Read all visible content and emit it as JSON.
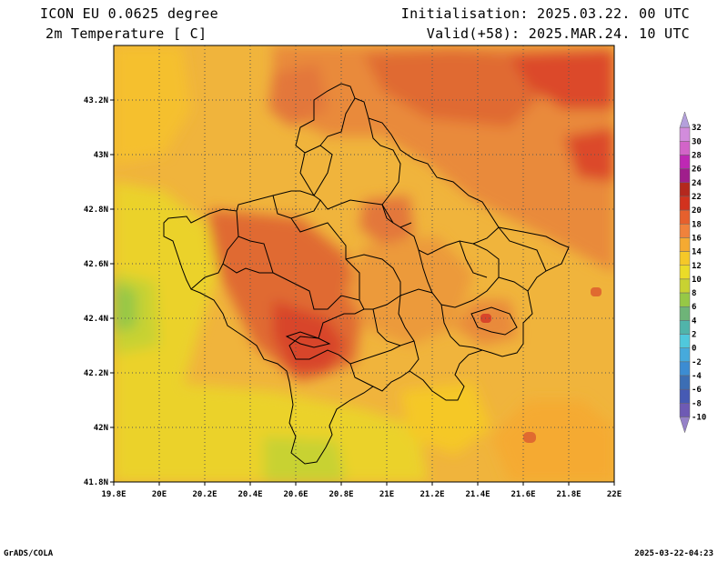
{
  "header": {
    "model": "ICON EU 0.0625 degree",
    "variable": "2m Temperature [ C]",
    "init": "Initialisation: 2025.03.22. 00 UTC",
    "valid": "Valid(+58): 2025.MAR.24. 10 UTC"
  },
  "footer": {
    "left": "GrADS/COLA",
    "right": "2025-03-22-04:23"
  },
  "map": {
    "lon_ticks": [
      "19.8E",
      "20E",
      "20.2E",
      "20.4E",
      "20.6E",
      "20.8E",
      "21E",
      "21.2E",
      "21.4E",
      "21.6E",
      "21.8E",
      "22E"
    ],
    "lat_ticks": [
      "43.2N",
      "43N",
      "42.8N",
      "42.6N",
      "42.4N",
      "42.2N",
      "42N",
      "41.8N"
    ],
    "lon_range": [
      19.8,
      22.0
    ],
    "lat_range": [
      41.8,
      43.4
    ],
    "grid": true
  },
  "colorbar": {
    "labels": [
      "32",
      "30",
      "28",
      "26",
      "24",
      "22",
      "20",
      "18",
      "16",
      "14",
      "12",
      "10",
      "8",
      "6",
      "4",
      "2",
      "0",
      "-2",
      "-4",
      "-6",
      "-8",
      "-10"
    ],
    "colors": [
      "#b4a0dc",
      "#d28cdc",
      "#d264c8",
      "#be28b4",
      "#a01e8c",
      "#b4281e",
      "#d2321e",
      "#e6602d",
      "#f0823c",
      "#f5aa32",
      "#f5c828",
      "#ebdc28",
      "#c8d232",
      "#96c846",
      "#6eb478",
      "#50b4aa",
      "#50c8dc",
      "#46aadc",
      "#3c8cd2",
      "#3c6eb4",
      "#465ab4",
      "#6e5ab4",
      "#9682c8"
    ]
  }
}
